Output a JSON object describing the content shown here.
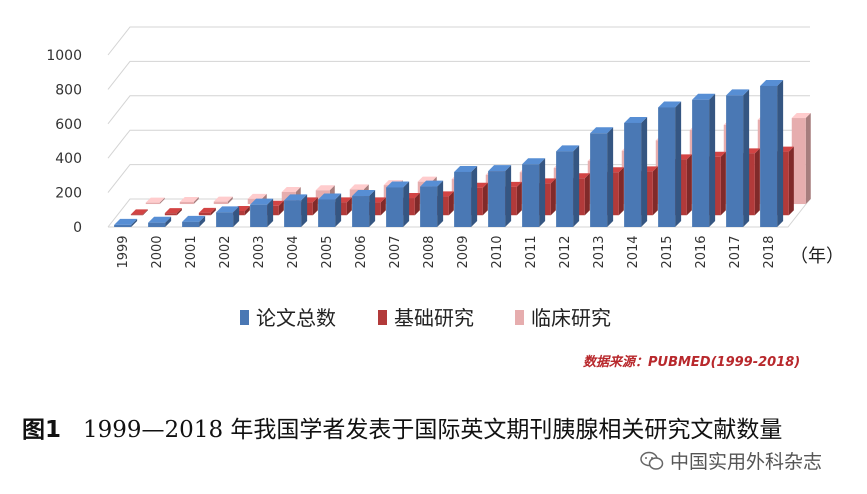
{
  "chart_data": {
    "type": "bar",
    "categories": [
      "1999",
      "2000",
      "2001",
      "2002",
      "2003",
      "2004",
      "2005",
      "2006",
      "2007",
      "2008",
      "2009",
      "2010",
      "2011",
      "2012",
      "2013",
      "2014",
      "2015",
      "2016",
      "2017",
      "2018"
    ],
    "series": [
      {
        "name": "论文总数",
        "color": "#4a78b4",
        "values": [
          12,
          25,
          30,
          85,
          130,
          155,
          160,
          180,
          230,
          235,
          320,
          325,
          365,
          440,
          545,
          605,
          695,
          740,
          765,
          820
        ]
      },
      {
        "name": "基础研究",
        "color": "#b23a3a",
        "values": [
          5,
          12,
          14,
          25,
          55,
          75,
          75,
          75,
          100,
          110,
          160,
          165,
          185,
          215,
          250,
          255,
          325,
          340,
          360,
          370
        ]
      },
      {
        "name": "临床研究",
        "color": "#e6adae",
        "values": [
          8,
          12,
          14,
          30,
          70,
          80,
          85,
          110,
          130,
          145,
          170,
          185,
          210,
          250,
          310,
          370,
          430,
          460,
          490,
          500
        ]
      }
    ],
    "yticks": [
      0,
      200,
      400,
      600,
      800,
      1000
    ],
    "ylim": [
      0,
      1000
    ],
    "xlabel": "（年）",
    "title": ""
  },
  "source": "数据来源：PUBMED(1999-2018)",
  "caption": {
    "label": "图1",
    "text": "1999—2018 年我国学者发表于国际英文期刊胰腺相关研究文献数量"
  },
  "watermark": "中国实用外科杂志",
  "icons": {
    "watermark": "wechat-icon"
  }
}
